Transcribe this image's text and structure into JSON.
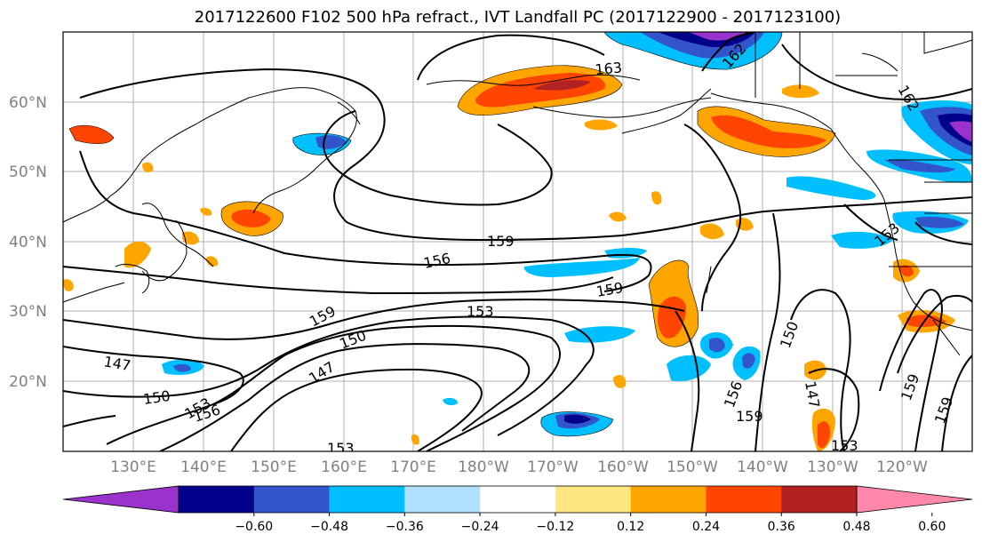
{
  "title": "2017122600 F102 500 hPa refract., IVT Landfall PC (2017122900 - 2017123100)",
  "lat_labels": [
    "60°N",
    "50°N",
    "40°N",
    "30°N",
    "20°N"
  ],
  "lon_labels": [
    "130°E",
    "140°E",
    "150°E",
    "160°E",
    "170°E",
    "180°W",
    "170°W",
    "160°W",
    "150°W",
    "140°W",
    "130°W",
    "120°W"
  ],
  "contour_labels": {
    "c159a": "159",
    "c156a": "156",
    "c159b": "159",
    "c153a": "153",
    "c159c": "159",
    "c150a": "150",
    "c147a": "147",
    "c147b": "147",
    "c150b": "150",
    "c153b": "153",
    "c156b": "156",
    "c163": "163",
    "c153c": "153",
    "c156c": "156",
    "c159d": "159",
    "c150c": "150",
    "c147c": "147",
    "c153d": "153",
    "c159e": "159",
    "c162a": "162",
    "c162b": "162",
    "c153e": "153",
    "c159f": "159"
  },
  "colorbar": {
    "colors": [
      "#9933cc",
      "#00008b",
      "#3355cc",
      "#00bfff",
      "#b0e0ff",
      "#ffffff",
      "#ffe680",
      "#ffa500",
      "#ff4500",
      "#b22222",
      "#ff88aa"
    ],
    "ticks": [
      "−0.60",
      "−0.48",
      "−0.36",
      "−0.24",
      "−0.12",
      "0.12",
      "0.24",
      "0.36",
      "0.48",
      "0.60"
    ]
  }
}
